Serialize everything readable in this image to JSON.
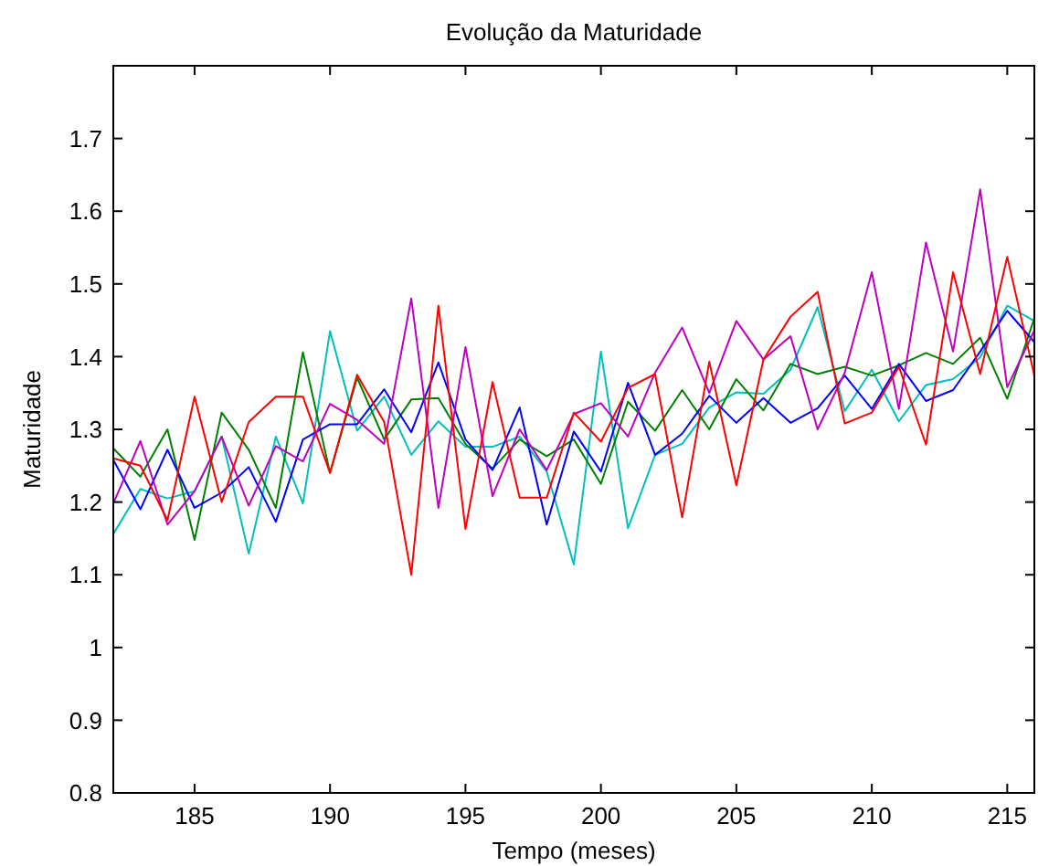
{
  "chart_data": {
    "type": "line",
    "title": "Evolução da Maturidade",
    "xlabel": "Tempo (meses)",
    "ylabel": "Maturidade",
    "x": [
      182,
      183,
      184,
      185,
      186,
      187,
      188,
      189,
      190,
      191,
      192,
      193,
      194,
      195,
      196,
      197,
      198,
      199,
      200,
      201,
      202,
      203,
      204,
      205,
      206,
      207,
      208,
      209,
      210,
      211,
      212,
      213,
      214,
      215,
      216
    ],
    "xlim": [
      182,
      216
    ],
    "xticks": [
      185,
      190,
      195,
      200,
      205,
      210,
      215
    ],
    "ylim": [
      0.8,
      1.8
    ],
    "yticks": [
      {
        "value": 0.8,
        "label": "0.8"
      },
      {
        "value": 0.9,
        "label": "0.9"
      },
      1,
      {
        "value": 1.1,
        "label": "1.1"
      },
      {
        "value": 1.2,
        "label": "1.2"
      },
      {
        "value": 1.3,
        "label": "1.3"
      },
      {
        "value": 1.4,
        "label": "1.4"
      },
      {
        "value": 1.5,
        "label": "1.5"
      },
      {
        "value": 1.6,
        "label": "1.6"
      },
      {
        "value": 1.7,
        "label": "1.7"
      }
    ],
    "grid": false,
    "marker": "none",
    "line_style": "solid",
    "series": [
      {
        "color": "#00bfbf",
        "values": [
          1.156,
          1.218,
          1.205,
          1.215,
          1.29,
          1.129,
          1.29,
          1.198,
          1.435,
          1.298,
          1.345,
          1.265,
          1.311,
          1.276,
          1.276,
          1.29,
          1.242,
          1.114,
          1.407,
          1.164,
          1.265,
          1.28,
          1.33,
          1.351,
          1.349,
          1.382,
          1.468,
          1.325,
          1.382,
          1.311,
          1.361,
          1.369,
          1.399,
          1.47,
          1.449
        ]
      },
      {
        "color": "#008000",
        "values": [
          1.274,
          1.235,
          1.3,
          1.148,
          1.323,
          1.272,
          1.192,
          1.406,
          1.24,
          1.371,
          1.286,
          1.341,
          1.343,
          1.28,
          1.246,
          1.286,
          1.263,
          1.286,
          1.225,
          1.338,
          1.298,
          1.354,
          1.3,
          1.369,
          1.326,
          1.39,
          1.376,
          1.386,
          1.374,
          1.388,
          1.405,
          1.39,
          1.426,
          1.342,
          1.453
        ]
      },
      {
        "color": "#0000ff",
        "values": [
          1.258,
          1.19,
          1.272,
          1.192,
          1.213,
          1.248,
          1.173,
          1.286,
          1.307,
          1.307,
          1.355,
          1.296,
          1.392,
          1.286,
          1.244,
          1.33,
          1.169,
          1.297,
          1.242,
          1.364,
          1.265,
          1.294,
          1.346,
          1.309,
          1.343,
          1.309,
          1.329,
          1.374,
          1.328,
          1.39,
          1.339,
          1.354,
          1.407,
          1.463,
          1.42
        ]
      },
      {
        "color": "#bf00bf",
        "values": [
          1.198,
          1.284,
          1.169,
          1.215,
          1.29,
          1.195,
          1.277,
          1.256,
          1.335,
          1.313,
          1.28,
          1.48,
          1.192,
          1.413,
          1.208,
          1.3,
          1.244,
          1.321,
          1.336,
          1.29,
          1.378,
          1.44,
          1.35,
          1.449,
          1.396,
          1.428,
          1.3,
          1.378,
          1.516,
          1.328,
          1.557,
          1.407,
          1.63,
          1.358,
          1.436
        ]
      },
      {
        "color": "#ff0000",
        "values": [
          1.26,
          1.25,
          1.175,
          1.345,
          1.2,
          1.31,
          1.345,
          1.345,
          1.24,
          1.375,
          1.31,
          1.1,
          1.47,
          1.163,
          1.365,
          1.206,
          1.206,
          1.323,
          1.283,
          1.357,
          1.376,
          1.179,
          1.393,
          1.223,
          1.396,
          1.455,
          1.489,
          1.308,
          1.323,
          1.386,
          1.279,
          1.516,
          1.376,
          1.537,
          1.374
        ]
      }
    ]
  }
}
